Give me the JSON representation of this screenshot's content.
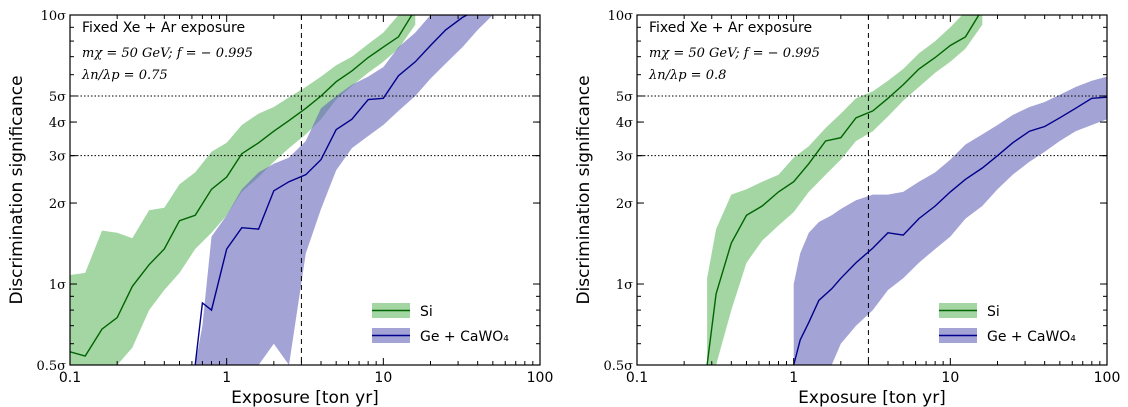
{
  "chart_data": [
    {
      "type": "line",
      "panel": "left",
      "x_scale": "log",
      "y_scale": "log",
      "xlim": [
        0.1,
        100
      ],
      "ylim": [
        0.5,
        10
      ],
      "xlabel": "Exposure [ton yr]",
      "ylabel": "Discrimination significance",
      "xtick_labels": [
        "0.1",
        "1",
        "10",
        "100"
      ],
      "xtick_values": [
        0.1,
        1,
        10,
        100
      ],
      "ytick_values": [
        0.5,
        1,
        2,
        3,
        4,
        5,
        10
      ],
      "ytick_labels": [
        "0.5σ",
        "1σ",
        "2σ",
        "3σ",
        "4σ",
        "5σ",
        "10σ"
      ],
      "hlines": [
        3,
        5
      ],
      "vline": 3,
      "annotation": {
        "title": "Fixed Xe + Ar exposure",
        "line1": "mχ = 50 GeV;  f = − 0.995",
        "line2": "λn/λp = 0.75"
      },
      "legend_position": "lower right",
      "series": [
        {
          "name": "Si",
          "color": "#006400",
          "band_color": "#66bb66",
          "x": [
            0.1,
            0.125,
            0.16,
            0.2,
            0.25,
            0.32,
            0.4,
            0.5,
            0.63,
            0.8,
            1.0,
            1.25,
            1.6,
            2.0,
            2.5,
            3.2,
            4.0,
            5.0,
            6.3,
            8.0,
            10,
            12.5,
            16
          ],
          "y": [
            0.56,
            0.54,
            0.68,
            0.75,
            0.98,
            1.18,
            1.35,
            1.72,
            1.8,
            2.25,
            2.5,
            3.05,
            3.35,
            3.7,
            4.05,
            4.5,
            5.0,
            5.65,
            6.2,
            6.95,
            7.6,
            8.3,
            10.5
          ],
          "upper": [
            1.08,
            1.1,
            1.58,
            1.55,
            1.48,
            1.88,
            1.92,
            2.35,
            2.6,
            3.1,
            3.35,
            3.9,
            4.3,
            4.55,
            4.95,
            5.4,
            5.9,
            6.5,
            7.0,
            7.8,
            8.6,
            10.0,
            10.5
          ],
          "lower": [
            0.5,
            0.5,
            0.5,
            0.5,
            0.58,
            0.8,
            0.95,
            1.1,
            1.35,
            1.55,
            1.8,
            2.2,
            2.5,
            2.85,
            3.2,
            3.6,
            4.1,
            4.85,
            5.45,
            6.1,
            6.7,
            7.5,
            9.2
          ]
        },
        {
          "name": "Ge + CaWO₄",
          "color": "#00008b",
          "band_color": "#6666bb",
          "x": [
            0.63,
            0.7,
            0.8,
            1.0,
            1.25,
            1.6,
            2.0,
            2.5,
            3.2,
            4.0,
            5.0,
            6.3,
            8.0,
            10,
            12.5,
            16,
            20,
            25,
            32,
            40,
            50
          ],
          "y": [
            0.5,
            0.85,
            0.8,
            1.35,
            1.62,
            1.6,
            2.22,
            2.4,
            2.55,
            2.9,
            3.75,
            4.1,
            4.85,
            4.9,
            5.95,
            6.7,
            7.7,
            8.8,
            9.8,
            10.5,
            10.5
          ],
          "upper": [
            0.5,
            0.7,
            1.5,
            1.8,
            2.25,
            2.6,
            2.8,
            2.95,
            3.4,
            4.5,
            5.0,
            5.5,
            5.9,
            6.4,
            7.6,
            8.6,
            10.0,
            10.5,
            10.5,
            10.5,
            10.5
          ],
          "lower": [
            0.5,
            0.5,
            0.5,
            0.5,
            0.5,
            0.5,
            0.6,
            0.5,
            1.3,
            1.9,
            2.65,
            3.2,
            3.55,
            3.9,
            4.4,
            5.0,
            5.8,
            6.6,
            7.6,
            8.8,
            10.0
          ]
        }
      ]
    },
    {
      "type": "line",
      "panel": "right",
      "x_scale": "log",
      "y_scale": "log",
      "xlim": [
        0.1,
        100
      ],
      "ylim": [
        0.5,
        10
      ],
      "xlabel": "Exposure [ton yr]",
      "ylabel": "Discrimination significance",
      "xtick_labels": [
        "0.1",
        "1",
        "10",
        "100"
      ],
      "xtick_values": [
        0.1,
        1,
        10,
        100
      ],
      "ytick_values": [
        0.5,
        1,
        2,
        3,
        4,
        5,
        10
      ],
      "ytick_labels": [
        "0.5σ",
        "1σ",
        "2σ",
        "3σ",
        "4σ",
        "5σ",
        "10σ"
      ],
      "hlines": [
        3,
        5
      ],
      "vline": 3,
      "annotation": {
        "title": "Fixed Xe + Ar exposure",
        "line1": "mχ = 50 GeV;  f = − 0.995",
        "line2": "λn/λp = 0.8"
      },
      "legend_position": "lower right",
      "series": [
        {
          "name": "Si",
          "color": "#006400",
          "band_color": "#66bb66",
          "x": [
            0.28,
            0.32,
            0.4,
            0.5,
            0.63,
            0.8,
            1.0,
            1.25,
            1.6,
            2.0,
            2.5,
            3.2,
            4.0,
            5.0,
            6.3,
            8.0,
            10,
            12.5,
            16
          ],
          "y": [
            0.5,
            0.92,
            1.42,
            1.8,
            1.95,
            2.2,
            2.4,
            2.8,
            3.4,
            3.5,
            4.15,
            4.4,
            4.9,
            5.5,
            6.3,
            6.95,
            7.7,
            8.3,
            10.5
          ],
          "upper": [
            1.05,
            1.6,
            2.15,
            2.25,
            2.4,
            2.55,
            2.95,
            3.25,
            3.8,
            4.3,
            4.9,
            5.2,
            5.7,
            6.3,
            7.2,
            8.0,
            9.0,
            10.3,
            10.5
          ],
          "lower": [
            0.5,
            0.5,
            0.8,
            1.2,
            1.45,
            1.65,
            1.85,
            2.2,
            2.55,
            2.9,
            3.4,
            3.7,
            4.2,
            4.8,
            5.4,
            6.1,
            6.7,
            7.5,
            9.2
          ]
        },
        {
          "name": "Ge + CaWO₄",
          "color": "#00008b",
          "band_color": "#6666bb",
          "x": [
            1.0,
            1.1,
            1.25,
            1.45,
            1.75,
            2.0,
            2.5,
            3.2,
            4.0,
            5.0,
            6.3,
            8.0,
            10,
            12.5,
            16,
            20,
            25,
            32,
            40,
            50,
            63,
            80,
            100
          ],
          "y": [
            0.5,
            0.62,
            0.72,
            0.87,
            0.96,
            1.05,
            1.2,
            1.36,
            1.55,
            1.52,
            1.75,
            1.95,
            2.2,
            2.45,
            2.7,
            3.0,
            3.35,
            3.7,
            3.85,
            4.15,
            4.5,
            4.9,
            4.95
          ],
          "upper": [
            1.0,
            1.3,
            1.55,
            1.7,
            1.8,
            1.9,
            2.05,
            2.15,
            2.15,
            2.2,
            2.4,
            2.6,
            2.9,
            3.3,
            3.6,
            3.9,
            4.25,
            4.55,
            4.75,
            5.05,
            5.4,
            5.7,
            5.9
          ],
          "lower": [
            0.5,
            0.5,
            0.5,
            0.5,
            0.5,
            0.6,
            0.7,
            0.8,
            0.95,
            1.05,
            1.2,
            1.35,
            1.5,
            1.75,
            1.95,
            2.25,
            2.55,
            2.85,
            3.1,
            3.4,
            3.7,
            3.9,
            4.1
          ]
        }
      ]
    }
  ]
}
